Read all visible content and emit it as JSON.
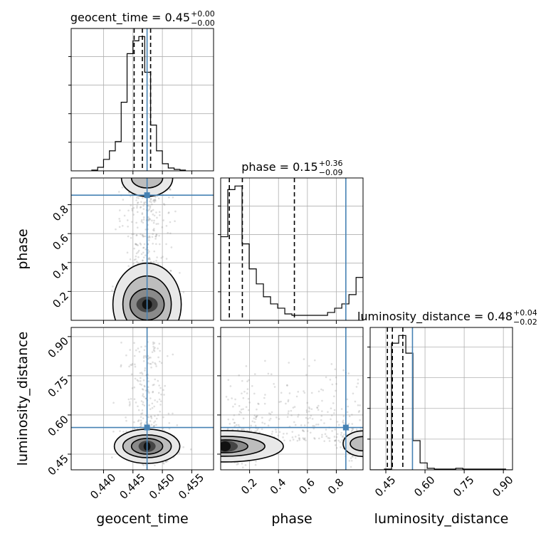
{
  "chart_data": {
    "type": "corner",
    "parameters": [
      "geocent_time",
      "phase",
      "luminosity_distance"
    ],
    "truths": {
      "geocent_time": 0.4474,
      "phase": 0.866,
      "luminosity_distance": 0.552
    },
    "axis_ranges": {
      "geocent_time": [
        0.4345,
        0.4587
      ],
      "phase": [
        0.0,
        0.985
      ],
      "luminosity_distance": [
        0.39,
        0.935
      ]
    },
    "marginals": [
      {
        "parameter": "geocent_time",
        "title": {
          "prefix": "geocent_time = 0.45",
          "plus": "+0.00",
          "minus": "−0.00"
        },
        "quantiles": [
          0.4452,
          0.4466,
          0.448
        ],
        "bin_start": 0.438,
        "bin_width": 0.001,
        "counts": [
          1,
          5,
          16,
          28,
          41,
          96,
          164,
          182,
          188,
          138,
          64,
          28,
          10,
          4,
          2,
          1
        ]
      },
      {
        "parameter": "phase",
        "title": {
          "prefix": "phase = 0.15",
          "plus": "+0.36",
          "minus": "−0.09"
        },
        "quantiles": [
          0.06,
          0.15,
          0.51
        ],
        "bin_start": 0.0,
        "bin_width": 0.0493,
        "counts": [
          117,
          183,
          188,
          107,
          72,
          51,
          33,
          23,
          17,
          9,
          7,
          7,
          7,
          7,
          7,
          11,
          17,
          23,
          36,
          60
        ]
      },
      {
        "parameter": "luminosity_distance",
        "title": {
          "prefix": "luminosity_distance = 0.48",
          "plus": "+0.04",
          "minus": "−0.02"
        },
        "quantiles": [
          0.456,
          0.475,
          0.515
        ],
        "bin_start": 0.39,
        "bin_width": 0.0273,
        "counts": [
          0,
          0,
          1,
          165,
          175,
          152,
          38,
          9,
          2,
          1,
          1,
          1,
          2,
          1,
          1,
          1,
          1,
          1,
          1,
          0
        ]
      }
    ],
    "tick_labels": {
      "geocent_time": [
        "0.440",
        "0.445",
        "0.450",
        "0.455"
      ],
      "phase": [
        "0.2",
        "0.4",
        "0.6",
        "0.8"
      ],
      "luminosity_distance": [
        "0.45",
        "0.60",
        "0.75",
        "0.90"
      ]
    },
    "tick_values": {
      "geocent_time": [
        0.44,
        0.445,
        0.45,
        0.455
      ],
      "phase": [
        0.2,
        0.4,
        0.6,
        0.8
      ],
      "luminosity_distance": [
        0.45,
        0.6,
        0.75,
        0.9
      ]
    },
    "axis_labels": {
      "geocent_time": "geocent_time",
      "phase": "phase",
      "luminosity_distance": "luminosity_distance"
    },
    "grid": true,
    "colors": {
      "hist": "#000000",
      "truth": "#4682b4",
      "points": "#808080"
    }
  }
}
